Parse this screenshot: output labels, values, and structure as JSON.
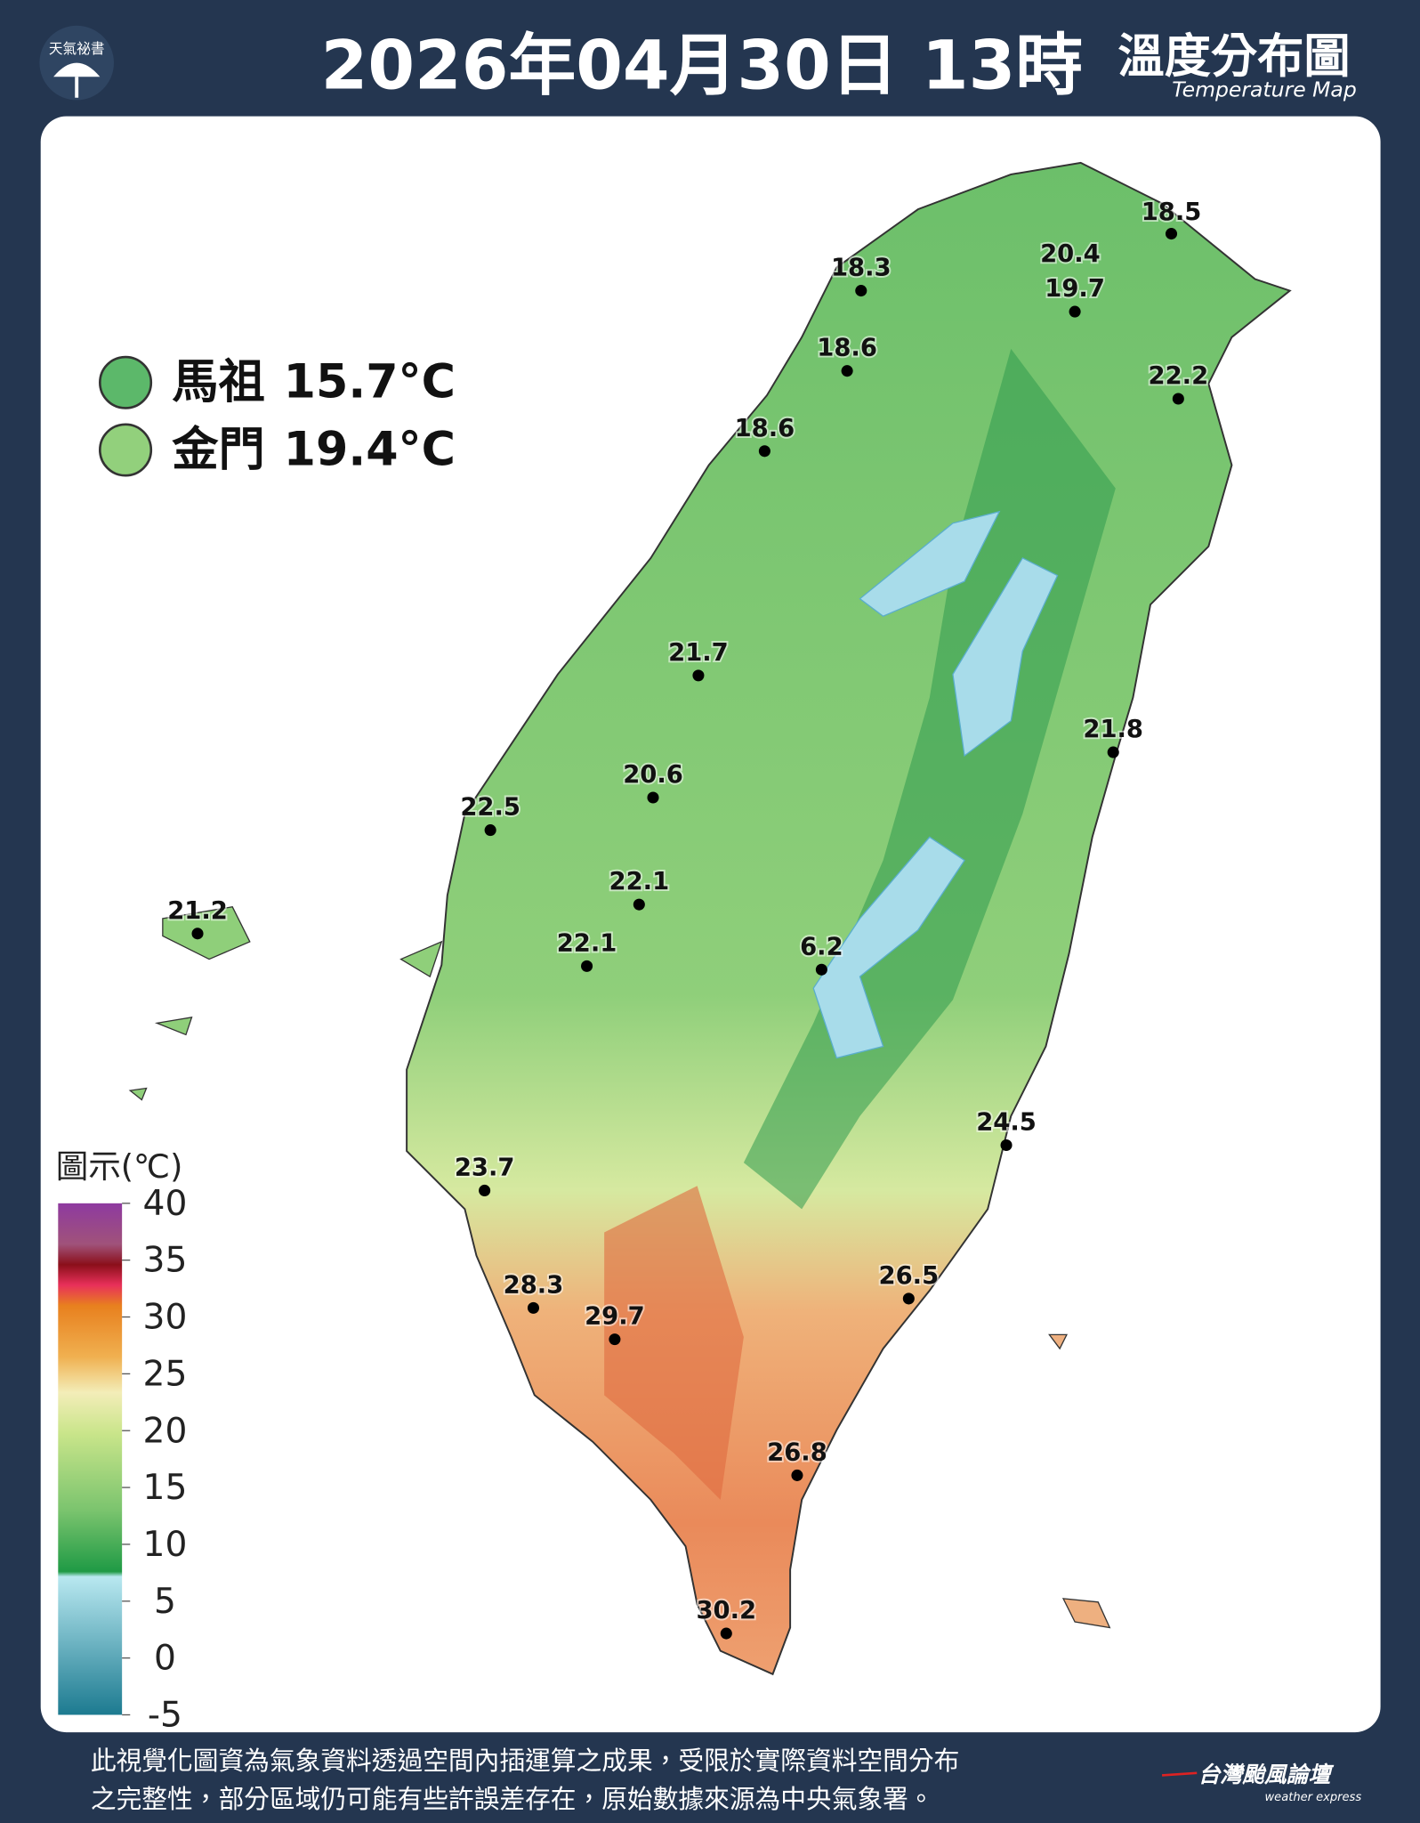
{
  "header": {
    "logo": "天氣祕書",
    "title": "2026年04月30日 13時",
    "subtitle": "溫度分布圖",
    "subtitle_en": "Temperature Map"
  },
  "islands": [
    {
      "name": "馬祖",
      "label": "15.7°C"
    },
    {
      "name": "金門",
      "label": "19.4°C"
    }
  ],
  "stations": [
    18.5,
    20.4,
    19.7,
    18.3,
    18.6,
    22.2,
    18.6,
    21.7,
    21.8,
    20.6,
    22.5,
    22.1,
    21.2,
    22.1,
    6.2,
    24.5,
    23.7,
    26.5,
    28.3,
    29.7,
    26.8,
    30.2
  ],
  "legend": {
    "title": "圖示(℃)",
    "ticks": [
      40,
      35,
      30,
      25,
      20,
      15,
      10,
      5,
      0,
      -5
    ]
  },
  "footer": {
    "lines": [
      "此視覺化圖資為氣象資料透過空間內插運算之成果，受限於實際資料空間分布",
      "之完整性，部分區域仍可能有些許誤差存在，原始數據來源為中央氣象署。"
    ],
    "brand": "台灣颱風論壇",
    "brand_sub": "weather express"
  }
}
